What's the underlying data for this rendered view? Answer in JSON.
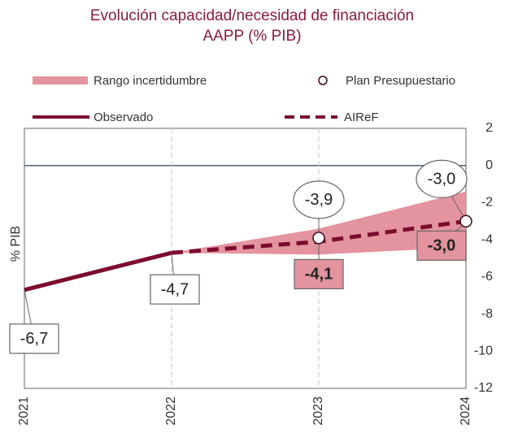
{
  "chart_data": {
    "type": "line",
    "title": [
      "Evolución capacidad/necesidad de financiación",
      "AAPP (% PIB)"
    ],
    "y_label": "% PIB",
    "xlim": [
      2021,
      2024
    ],
    "xticks": [
      2021,
      2022,
      2023,
      2024
    ],
    "ylim": [
      -12,
      2
    ],
    "yticks": [
      2,
      0,
      -2,
      -4,
      -6,
      -8,
      -10,
      -12
    ],
    "grid": true,
    "band": {
      "name": "Rango incertidumbre",
      "color": "#e3949e",
      "x": [
        2022,
        2023,
        2024
      ],
      "lower": [
        -4.7,
        -4.8,
        -4.4
      ],
      "upper": [
        -4.7,
        -3.4,
        -1.4
      ]
    },
    "series": [
      {
        "name": "Observado",
        "color": "#7b0c2e",
        "style": "solid",
        "x": [
          2021,
          2022
        ],
        "values": [
          -6.7,
          -4.7
        ],
        "value_labels": [
          "-6,7",
          "-4,7"
        ]
      },
      {
        "name": "AIReF",
        "color": "#7b0c2e",
        "style": "dashed",
        "x": [
          2022,
          2023,
          2024
        ],
        "values": [
          -4.7,
          -4.1,
          -3.0
        ],
        "value_labels": [
          null,
          "-4,1",
          "-3,0"
        ]
      },
      {
        "name": "Plan Presupuestario",
        "color": "#3a0a18",
        "style": "marker",
        "x": [
          2023,
          2024
        ],
        "values": [
          -3.9,
          -3.0
        ],
        "value_labels": [
          "-3,9",
          "-3,0"
        ]
      }
    ]
  }
}
